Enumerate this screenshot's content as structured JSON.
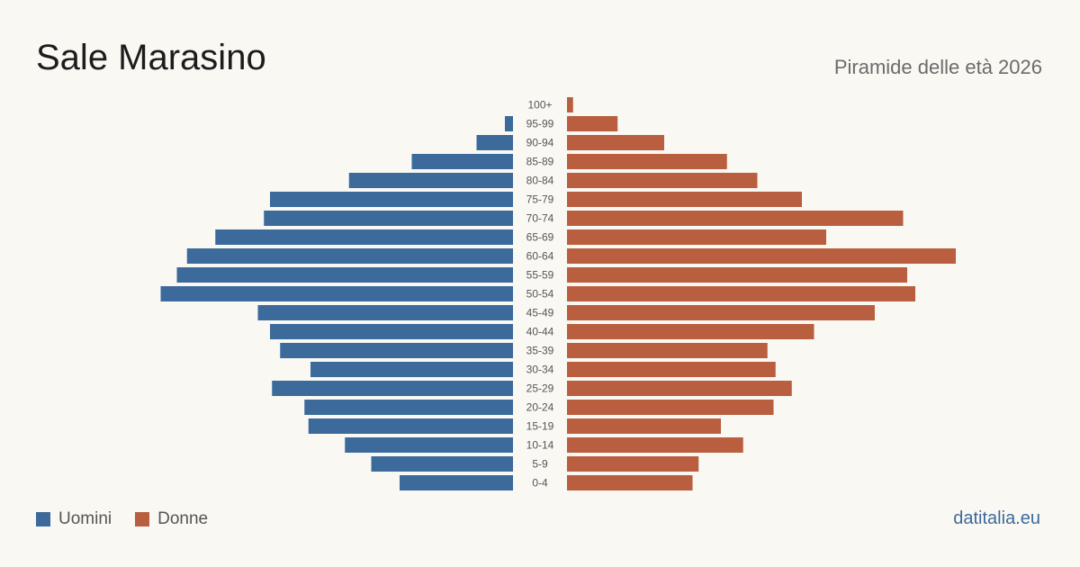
{
  "header": {
    "title": "Sale Marasino",
    "subtitle": "Piramide delle età 2026"
  },
  "footer": {
    "source": "datitalia.eu"
  },
  "colors": {
    "men": "#3b6a9b",
    "women": "#b95e3e",
    "label": "#555555"
  },
  "chart_data": {
    "type": "bar",
    "orientation": "horizontal-pyramid",
    "categories": [
      "100+",
      "95-99",
      "90-94",
      "85-89",
      "80-84",
      "75-79",
      "70-74",
      "65-69",
      "60-64",
      "55-59",
      "50-54",
      "45-49",
      "40-44",
      "35-39",
      "30-34",
      "25-29",
      "20-24",
      "15-19",
      "10-14",
      "5-9",
      "0-4"
    ],
    "series": [
      {
        "name": "Uomini",
        "values": [
          0,
          4,
          18,
          50,
          81,
          120,
          123,
          147,
          161,
          166,
          174,
          126,
          120,
          115,
          100,
          119,
          103,
          101,
          83,
          70,
          56
        ]
      },
      {
        "name": "Donne",
        "values": [
          3,
          25,
          48,
          79,
          94,
          116,
          166,
          128,
          192,
          168,
          172,
          152,
          122,
          99,
          103,
          111,
          102,
          76,
          87,
          65,
          62
        ]
      }
    ],
    "xlim": [
      0,
      200
    ],
    "legend_position": "bottom-left",
    "grid": false
  }
}
